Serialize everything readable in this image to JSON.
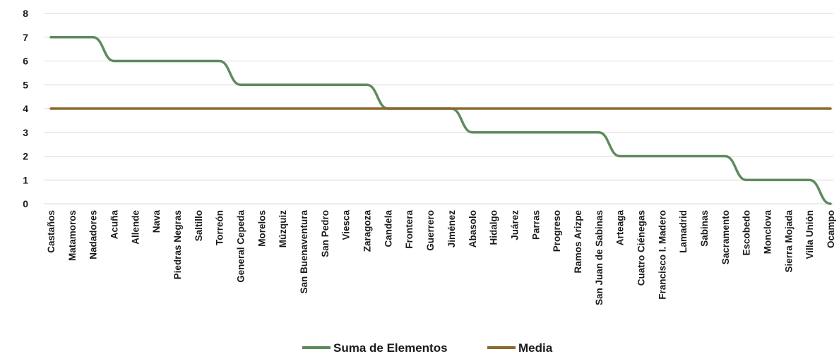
{
  "chart_data": {
    "type": "line",
    "title": "",
    "xlabel": "",
    "ylabel": "",
    "ylim": [
      0,
      8
    ],
    "yticks": [
      0,
      1,
      2,
      3,
      4,
      5,
      6,
      7,
      8
    ],
    "grid": true,
    "legend_position": "bottom",
    "categories": [
      "Castaños",
      "Matamoros",
      "Nadadores",
      "Acuña",
      "Allende",
      "Nava",
      "Piedras Negras",
      "Saltillo",
      "Torreón",
      "General Cepeda",
      "Morelos",
      "Múzquiz",
      "San Buenaventura",
      "San Pedro",
      "Viesca",
      "Zaragoza",
      "Candela",
      "Frontera",
      "Guerrero",
      "Jiménez",
      "Abasolo",
      "Hidalgo",
      "Juárez",
      "Parras",
      "Progreso",
      "Ramos Arizpe",
      "San Juan de Sabinas",
      "Arteaga",
      "Cuatro Ciénegas",
      "Francisco I. Madero",
      "Lamadrid",
      "Sabinas",
      "Sacramento",
      "Escobedo",
      "Monclova",
      "Sierra Mojada",
      "Villa Unión",
      "Ocampo"
    ],
    "series": [
      {
        "name": "Suma de Elementos",
        "color": "#5e8b5e",
        "smooth": true,
        "values": [
          7,
          7,
          7,
          6,
          6,
          6,
          6,
          6,
          6,
          5,
          5,
          5,
          5,
          5,
          5,
          5,
          4,
          4,
          4,
          4,
          3,
          3,
          3,
          3,
          3,
          3,
          3,
          2,
          2,
          2,
          2,
          2,
          2,
          1,
          1,
          1,
          1,
          0
        ]
      },
      {
        "name": "Media",
        "color": "#8b6a2e",
        "smooth": false,
        "values": [
          4,
          4,
          4,
          4,
          4,
          4,
          4,
          4,
          4,
          4,
          4,
          4,
          4,
          4,
          4,
          4,
          4,
          4,
          4,
          4,
          4,
          4,
          4,
          4,
          4,
          4,
          4,
          4,
          4,
          4,
          4,
          4,
          4,
          4,
          4,
          4,
          4,
          4
        ]
      }
    ]
  }
}
